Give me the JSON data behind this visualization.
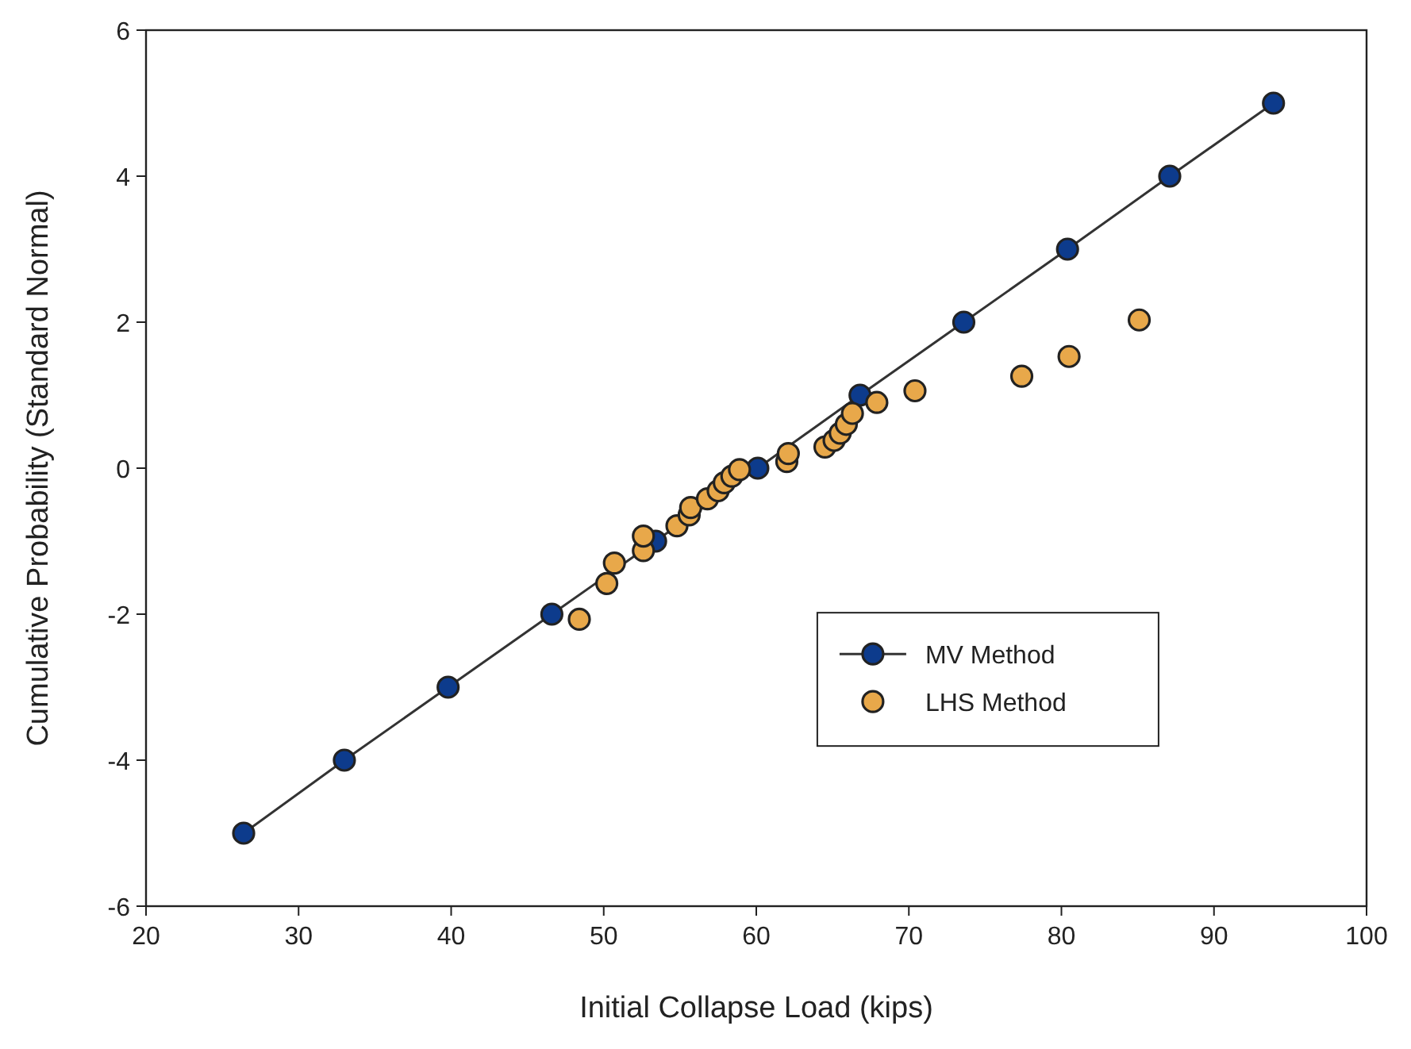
{
  "chart_data": {
    "type": "line",
    "xlabel": "Initial Collapse Load (kips)",
    "ylabel": "Cumulative Probability (Standard Normal)",
    "xlim": [
      20,
      100
    ],
    "ylim": [
      -6,
      6
    ],
    "xticks": [
      20,
      30,
      40,
      50,
      60,
      70,
      80,
      90,
      100
    ],
    "yticks": [
      -6,
      -4,
      -2,
      0,
      2,
      4,
      6
    ],
    "grid": false,
    "legend": "bottom right",
    "marker": "circle",
    "series": [
      {
        "name": "MV Method",
        "color": "#0d3b8c",
        "x": [
          26.4,
          33,
          39.8,
          46.6,
          53.4,
          60.1,
          66.8,
          73.6,
          80.4,
          87.1,
          93.9
        ],
        "values": [
          -5,
          -4,
          -3,
          -2,
          -1,
          0,
          1,
          2,
          3,
          4,
          5
        ]
      },
      {
        "name": "LHS Method",
        "type": "scatter",
        "color": "#e8a84a",
        "x": [
          48.4,
          50.2,
          50.7,
          52.6,
          52.6,
          54.8,
          55.6,
          55.7,
          56.8,
          57.5,
          57.9,
          58.4,
          58.9,
          62.0,
          62.1,
          64.5,
          65.1,
          65.5,
          65.9,
          66.3,
          67.9,
          70.4,
          77.4,
          80.5,
          85.1
        ],
        "values": [
          -2.07,
          -1.58,
          -1.3,
          -1.13,
          -0.93,
          -0.79,
          -0.64,
          -0.54,
          -0.42,
          -0.31,
          -0.2,
          -0.11,
          -0.02,
          0.09,
          0.2,
          0.29,
          0.38,
          0.48,
          0.6,
          0.75,
          0.9,
          1.06,
          1.26,
          1.53,
          2.03
        ]
      }
    ]
  }
}
